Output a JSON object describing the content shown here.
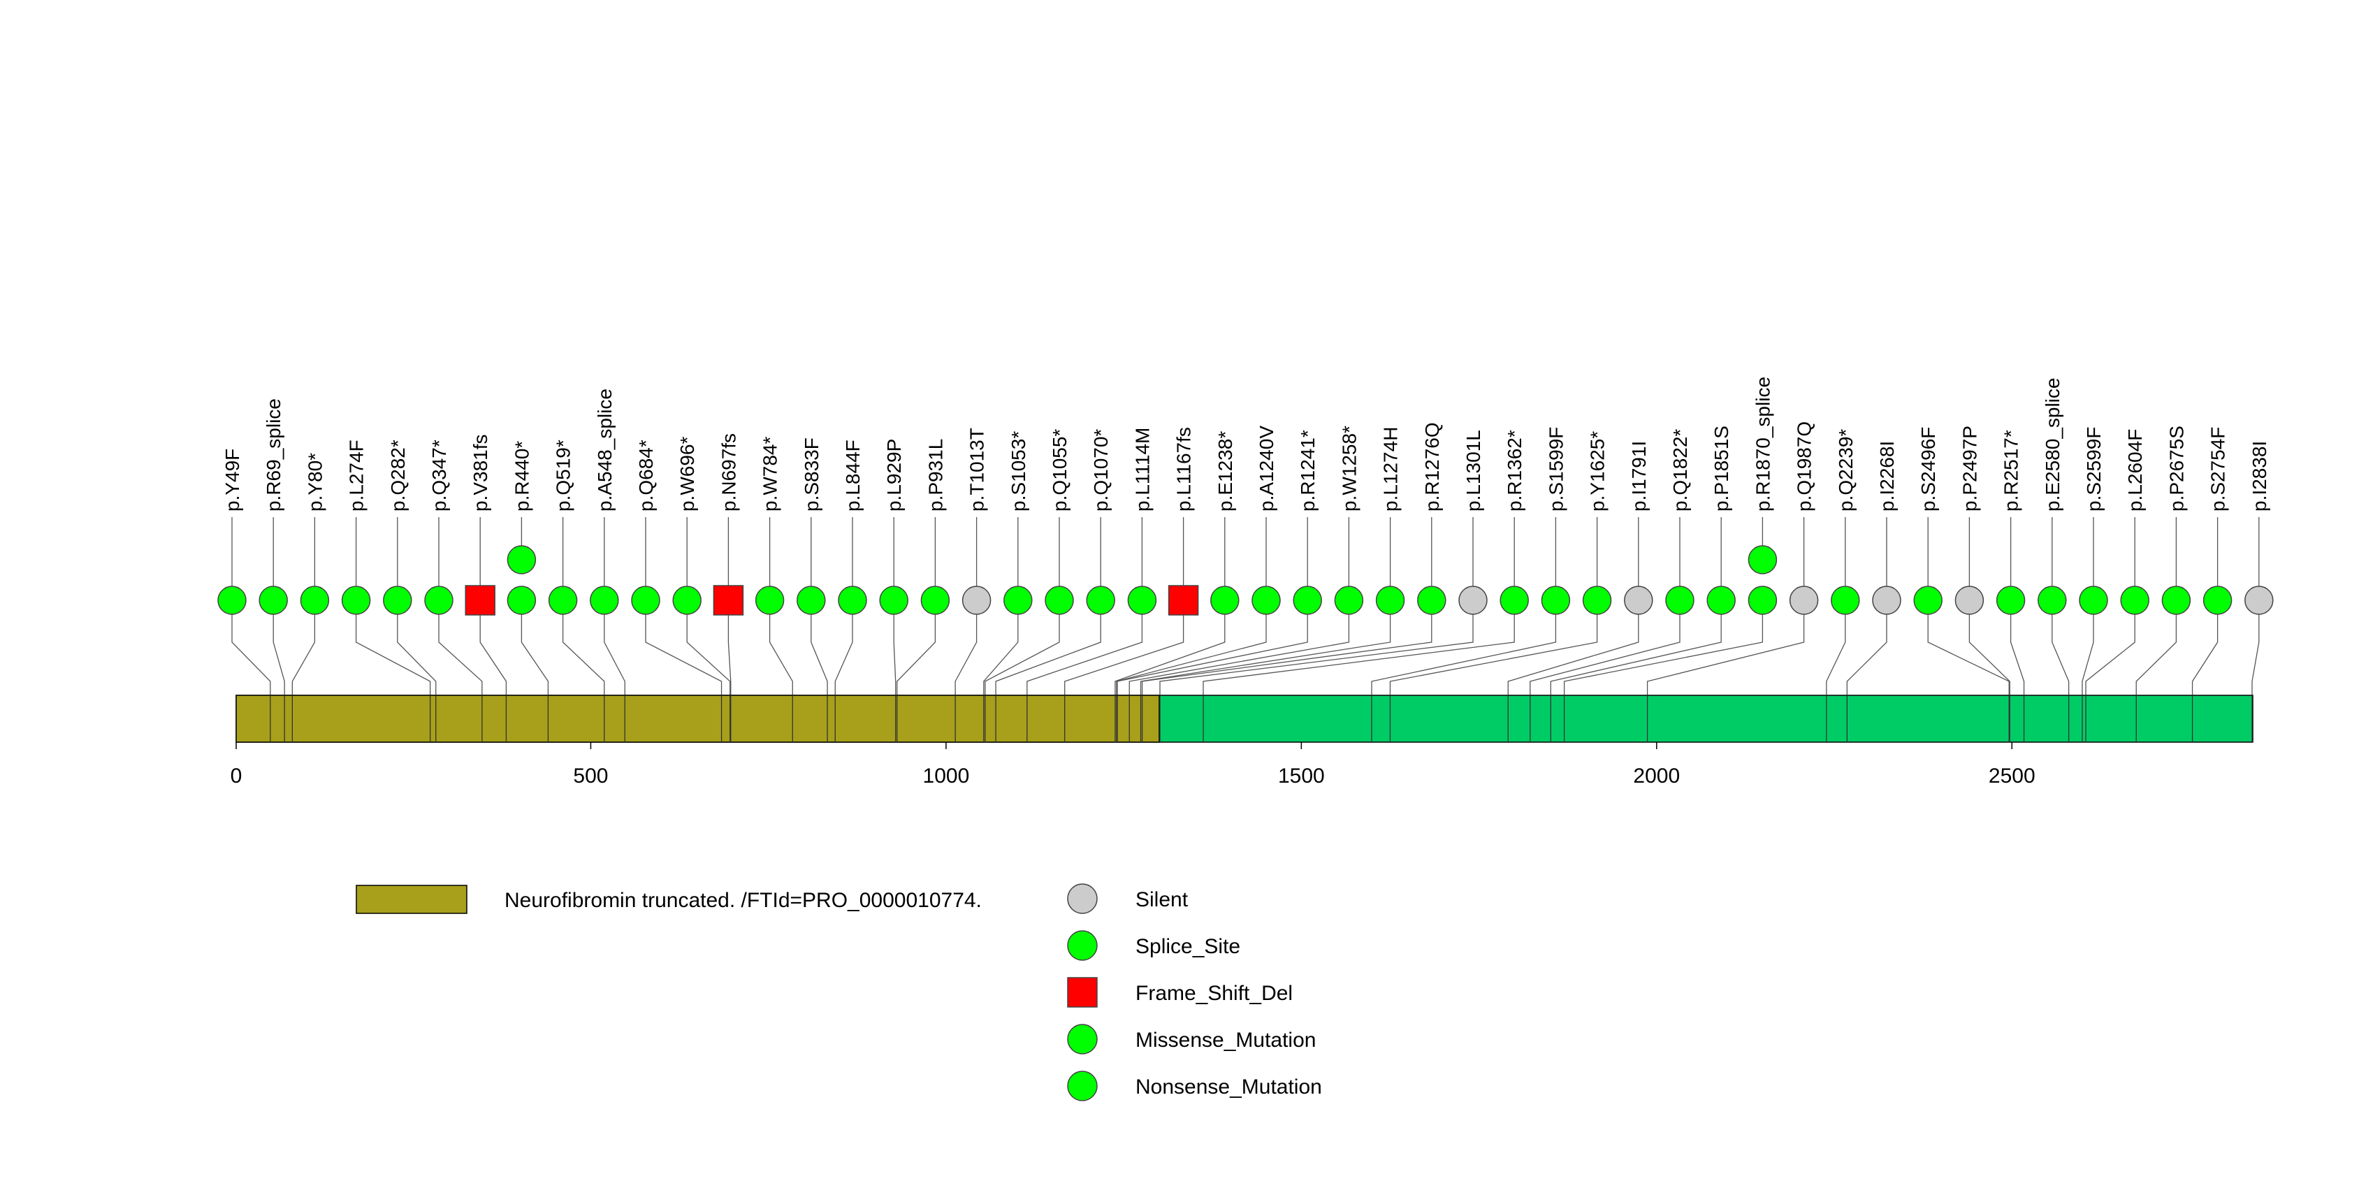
{
  "chart_data": {
    "type": "lollipop",
    "title": "",
    "xlabel": "",
    "ylabel": "",
    "xlim": [
      0,
      2839
    ],
    "axis": {
      "ticks": [
        0,
        500,
        1000,
        1500,
        2000,
        2500
      ]
    },
    "protein": {
      "length": 2839,
      "backbone_color": "#00CC66",
      "domains": [
        {
          "name": "Neurofibromin truncated. /FTId=PRO_0000010774.",
          "start": 1,
          "end": 1300,
          "color": "#A8A01A"
        }
      ]
    },
    "mutation_types": [
      {
        "name": "Silent",
        "color": "#CCCCCC",
        "shape": "circle"
      },
      {
        "name": "Splice_Site",
        "color": "#00FF00",
        "shape": "circle"
      },
      {
        "name": "Frame_Shift_Del",
        "color": "#FF0000",
        "shape": "square"
      },
      {
        "name": "Missense_Mutation",
        "color": "#00FF00",
        "shape": "circle"
      },
      {
        "name": "Nonsense_Mutation",
        "color": "#00FF00",
        "shape": "circle"
      }
    ],
    "mutations": [
      {
        "label": "p.Y49F",
        "pos": 49,
        "type": "Missense_Mutation",
        "count": 1
      },
      {
        "label": "p.R69_splice",
        "pos": 69,
        "type": "Splice_Site",
        "count": 1
      },
      {
        "label": "p.Y80*",
        "pos": 80,
        "type": "Nonsense_Mutation",
        "count": 1
      },
      {
        "label": "p.L274F",
        "pos": 274,
        "type": "Missense_Mutation",
        "count": 1
      },
      {
        "label": "p.Q282*",
        "pos": 282,
        "type": "Nonsense_Mutation",
        "count": 1
      },
      {
        "label": "p.Q347*",
        "pos": 347,
        "type": "Nonsense_Mutation",
        "count": 1
      },
      {
        "label": "p.V381fs",
        "pos": 381,
        "type": "Frame_Shift_Del",
        "count": 1
      },
      {
        "label": "p.R440*",
        "pos": 440,
        "type": "Nonsense_Mutation",
        "count": 2
      },
      {
        "label": "p.Q519*",
        "pos": 519,
        "type": "Nonsense_Mutation",
        "count": 1
      },
      {
        "label": "p.A548_splice",
        "pos": 548,
        "type": "Splice_Site",
        "count": 1
      },
      {
        "label": "p.Q684*",
        "pos": 684,
        "type": "Nonsense_Mutation",
        "count": 1
      },
      {
        "label": "p.W696*",
        "pos": 696,
        "type": "Nonsense_Mutation",
        "count": 1
      },
      {
        "label": "p.N697fs",
        "pos": 697,
        "type": "Frame_Shift_Del",
        "count": 1
      },
      {
        "label": "p.W784*",
        "pos": 784,
        "type": "Nonsense_Mutation",
        "count": 1
      },
      {
        "label": "p.S833F",
        "pos": 833,
        "type": "Missense_Mutation",
        "count": 1
      },
      {
        "label": "p.L844F",
        "pos": 844,
        "type": "Missense_Mutation",
        "count": 1
      },
      {
        "label": "p.L929P",
        "pos": 929,
        "type": "Missense_Mutation",
        "count": 1
      },
      {
        "label": "p.P931L",
        "pos": 931,
        "type": "Missense_Mutation",
        "count": 1
      },
      {
        "label": "p.T1013T",
        "pos": 1013,
        "type": "Silent",
        "count": 1
      },
      {
        "label": "p.S1053*",
        "pos": 1053,
        "type": "Nonsense_Mutation",
        "count": 1
      },
      {
        "label": "p.Q1055*",
        "pos": 1055,
        "type": "Nonsense_Mutation",
        "count": 1
      },
      {
        "label": "p.Q1070*",
        "pos": 1070,
        "type": "Nonsense_Mutation",
        "count": 1
      },
      {
        "label": "p.L1114M",
        "pos": 1114,
        "type": "Missense_Mutation",
        "count": 1
      },
      {
        "label": "p.L1167fs",
        "pos": 1167,
        "type": "Frame_Shift_Del",
        "count": 1
      },
      {
        "label": "p.E1238*",
        "pos": 1238,
        "type": "Nonsense_Mutation",
        "count": 1
      },
      {
        "label": "p.A1240V",
        "pos": 1240,
        "type": "Missense_Mutation",
        "count": 1
      },
      {
        "label": "p.R1241*",
        "pos": 1241,
        "type": "Nonsense_Mutation",
        "count": 1
      },
      {
        "label": "p.W1258*",
        "pos": 1258,
        "type": "Nonsense_Mutation",
        "count": 1
      },
      {
        "label": "p.L1274H",
        "pos": 1274,
        "type": "Missense_Mutation",
        "count": 1
      },
      {
        "label": "p.R1276Q",
        "pos": 1276,
        "type": "Missense_Mutation",
        "count": 1
      },
      {
        "label": "p.L1301L",
        "pos": 1301,
        "type": "Silent",
        "count": 1
      },
      {
        "label": "p.R1362*",
        "pos": 1362,
        "type": "Nonsense_Mutation",
        "count": 1
      },
      {
        "label": "p.S1599F",
        "pos": 1599,
        "type": "Missense_Mutation",
        "count": 1
      },
      {
        "label": "p.Y1625*",
        "pos": 1625,
        "type": "Nonsense_Mutation",
        "count": 1
      },
      {
        "label": "p.I1791I",
        "pos": 1791,
        "type": "Silent",
        "count": 1
      },
      {
        "label": "p.Q1822*",
        "pos": 1822,
        "type": "Nonsense_Mutation",
        "count": 1
      },
      {
        "label": "p.P1851S",
        "pos": 1851,
        "type": "Missense_Mutation",
        "count": 1
      },
      {
        "label": "p.R1870_splice",
        "pos": 1870,
        "type": "Splice_Site",
        "count": 2
      },
      {
        "label": "p.Q1987Q",
        "pos": 1987,
        "type": "Silent",
        "count": 1
      },
      {
        "label": "p.Q2239*",
        "pos": 2239,
        "type": "Nonsense_Mutation",
        "count": 1
      },
      {
        "label": "p.I2268I",
        "pos": 2268,
        "type": "Silent",
        "count": 1
      },
      {
        "label": "p.S2496F",
        "pos": 2496,
        "type": "Missense_Mutation",
        "count": 1
      },
      {
        "label": "p.P2497P",
        "pos": 2497,
        "type": "Silent",
        "count": 1
      },
      {
        "label": "p.R2517*",
        "pos": 2517,
        "type": "Nonsense_Mutation",
        "count": 1
      },
      {
        "label": "p.E2580_splice",
        "pos": 2580,
        "type": "Splice_Site",
        "count": 1
      },
      {
        "label": "p.S2599F",
        "pos": 2599,
        "type": "Missense_Mutation",
        "count": 1
      },
      {
        "label": "p.L2604F",
        "pos": 2604,
        "type": "Missense_Mutation",
        "count": 1
      },
      {
        "label": "p.P2675S",
        "pos": 2675,
        "type": "Missense_Mutation",
        "count": 1
      },
      {
        "label": "p.S2754F",
        "pos": 2754,
        "type": "Missense_Mutation",
        "count": 1
      },
      {
        "label": "p.I2838I",
        "pos": 2838,
        "type": "Silent",
        "count": 1
      }
    ]
  }
}
